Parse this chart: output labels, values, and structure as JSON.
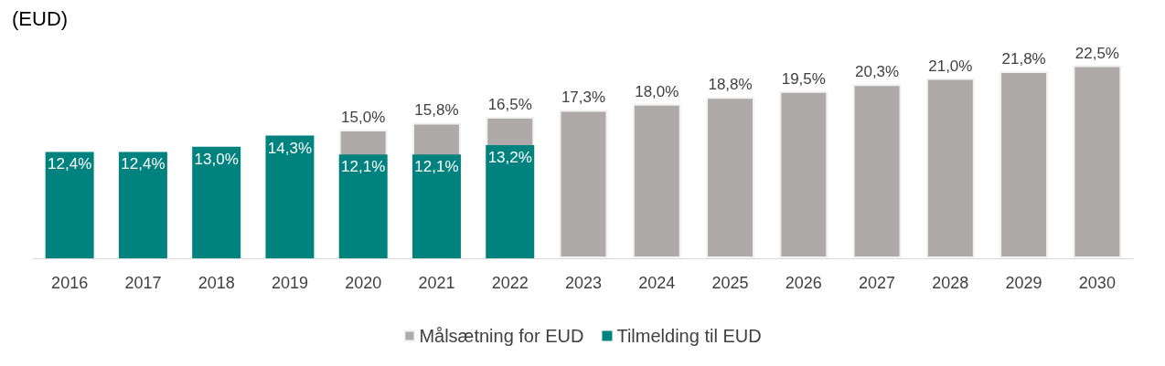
{
  "chart_data": {
    "type": "bar",
    "title": "(EUD)",
    "categories": [
      "2016",
      "2017",
      "2018",
      "2019",
      "2020",
      "2021",
      "2022",
      "2023",
      "2024",
      "2025",
      "2026",
      "2027",
      "2028",
      "2029",
      "2030"
    ],
    "series": [
      {
        "name": "Målsætning for EUD",
        "color": "#aeaaaa",
        "values": [
          null,
          null,
          null,
          null,
          15.0,
          15.8,
          16.5,
          17.3,
          18.0,
          18.8,
          19.5,
          20.3,
          21.0,
          21.8,
          22.5
        ],
        "value_labels": [
          null,
          null,
          null,
          null,
          "15,0%",
          "15,8%",
          "16,5%",
          "17,3%",
          "18,0%",
          "18,8%",
          "19,5%",
          "20,3%",
          "21,0%",
          "21,8%",
          "22,5%"
        ]
      },
      {
        "name": "Tilmelding til EUD",
        "color": "#00827f",
        "values": [
          12.4,
          12.4,
          13.0,
          14.3,
          12.1,
          12.1,
          13.2,
          null,
          null,
          null,
          null,
          null,
          null,
          null,
          null
        ],
        "value_labels": [
          "12,4%",
          "12,4%",
          "13,0%",
          "14,3%",
          "12,1%",
          "12,1%",
          "13,2%",
          null,
          null,
          null,
          null,
          null,
          null,
          null,
          null
        ]
      }
    ],
    "grid": false,
    "legend": "bottom"
  }
}
